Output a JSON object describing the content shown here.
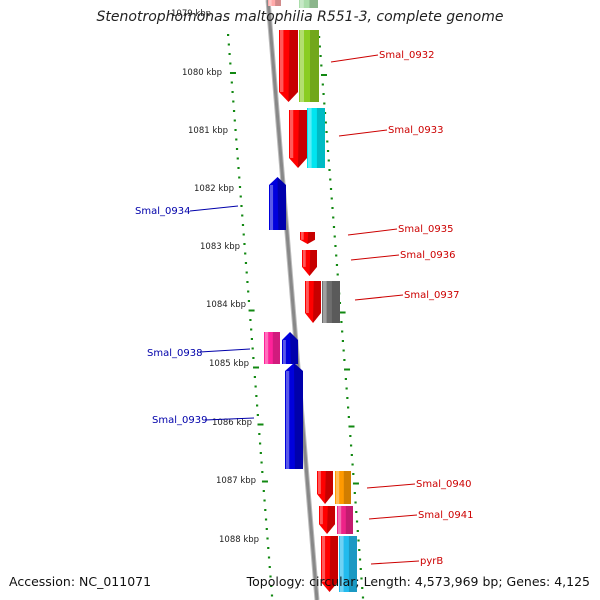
{
  "title": "Stenotrophomonas maltophilia R551-3, complete genome",
  "footer": {
    "accession": "Accession: NC_011071",
    "topology": "Topology: circular; Length: 4,573,969 bp; Genes: 4,125"
  },
  "colors": {
    "forward_label": "#cc0000",
    "reverse_label": "#0000aa",
    "backbone": "#888888",
    "tick": "#118811"
  },
  "axis": {
    "partial_top_label": "1079 kbp",
    "ticks": [
      "1080 kbp",
      "1081 kbp",
      "1082 kbp",
      "1083 kbp",
      "1084 kbp",
      "1085 kbp",
      "1086 kbp",
      "1087 kbp",
      "1088 kbp"
    ]
  },
  "genes": [
    {
      "label": "Smal_0932",
      "strand": "+",
      "color": "#ff0000"
    },
    {
      "label": "Smal_0933",
      "strand": "+",
      "color": "#ff0000"
    },
    {
      "label": "Smal_0934",
      "strand": "-",
      "color": "#0000dd"
    },
    {
      "label": "Smal_0935",
      "strand": "+",
      "color": "#ff0000"
    },
    {
      "label": "Smal_0936",
      "strand": "+",
      "color": "#ff0000"
    },
    {
      "label": "Smal_0937",
      "strand": "+",
      "color": "#ff0000"
    },
    {
      "label": "Smal_0938",
      "strand": "-",
      "color": "#0000dd"
    },
    {
      "label": "Smal_0939",
      "strand": "-",
      "color": "#0000dd"
    },
    {
      "label": "Smal_0940",
      "strand": "+",
      "color": "#ff0000"
    },
    {
      "label": "Smal_0941",
      "strand": "+",
      "color": "#ff0000"
    },
    {
      "label": "pyrB",
      "strand": "+",
      "color": "#ff0000"
    }
  ]
}
